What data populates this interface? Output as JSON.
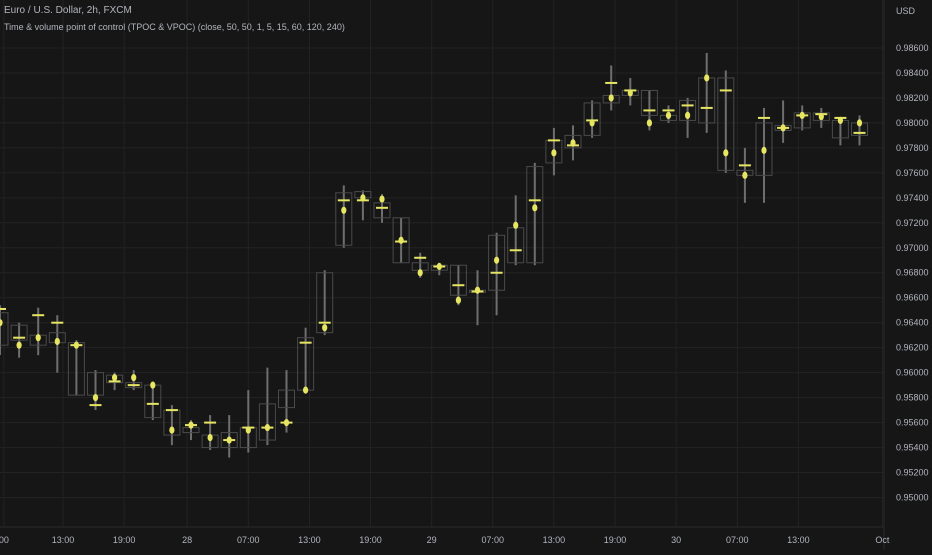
{
  "header": {
    "symbol": "Euro / U.S. Dollar, 2h, FXCM",
    "indicator": "Time & volume point of control (TPOC & VPOC) (close, 50, 50, 1, 5, 15, 60, 120, 240)"
  },
  "colors": {
    "background": "#161616",
    "grid": "#232323",
    "wick": "#6e6e6e",
    "box": "#4a4a4a",
    "marker": "#e7e663",
    "text": "#b2b5be"
  },
  "chart_data": {
    "type": "candlestick",
    "currency_label": "USD",
    "y_ticks": [
      "0.98600",
      "0.98400",
      "0.98200",
      "0.98000",
      "0.97800",
      "0.97600",
      "0.97400",
      "0.97200",
      "0.97000",
      "0.96800",
      "0.96600",
      "0.96400",
      "0.96200",
      "0.96000",
      "0.95800",
      "0.95600",
      "0.95400",
      "0.95200",
      "0.95000"
    ],
    "ylim": [
      0.949,
      0.9876
    ],
    "x_ticks": [
      {
        "label": "00",
        "idx": 0.2
      },
      {
        "label": "13:00",
        "idx": 3.3
      },
      {
        "label": "19:00",
        "idx": 6.5
      },
      {
        "label": "28",
        "idx": 9.8
      },
      {
        "label": "07:00",
        "idx": 13.0
      },
      {
        "label": "13:00",
        "idx": 16.2
      },
      {
        "label": "19:00",
        "idx": 19.4
      },
      {
        "label": "29",
        "idx": 22.6
      },
      {
        "label": "07:00",
        "idx": 25.8
      },
      {
        "label": "13:00",
        "idx": 29.0
      },
      {
        "label": "19:00",
        "idx": 32.2
      },
      {
        "label": "30",
        "idx": 35.4
      },
      {
        "label": "07:00",
        "idx": 38.6
      },
      {
        "label": "13:00",
        "idx": 41.8
      },
      {
        "label": "Oct",
        "idx": 46.2
      }
    ],
    "candles": [
      {
        "o": 0.9648,
        "h": 0.9654,
        "l": 0.9614,
        "c": 0.9622,
        "tpoc": 0.9651,
        "vpoc": 0.964
      },
      {
        "o": 0.9626,
        "h": 0.964,
        "l": 0.9612,
        "c": 0.9638,
        "tpoc": 0.9628,
        "vpoc": 0.9622
      },
      {
        "o": 0.963,
        "h": 0.9652,
        "l": 0.9614,
        "c": 0.9622,
        "tpoc": 0.9646,
        "vpoc": 0.9628
      },
      {
        "o": 0.9624,
        "h": 0.9646,
        "l": 0.96,
        "c": 0.9632,
        "tpoc": 0.964,
        "vpoc": 0.9625
      },
      {
        "o": 0.9624,
        "h": 0.9626,
        "l": 0.9582,
        "c": 0.9582,
        "tpoc": 0.9622,
        "vpoc": 0.9622
      },
      {
        "o": 0.9582,
        "h": 0.9602,
        "l": 0.957,
        "c": 0.96,
        "tpoc": 0.9574,
        "vpoc": 0.958
      },
      {
        "o": 0.9592,
        "h": 0.96,
        "l": 0.9586,
        "c": 0.9598,
        "tpoc": 0.9593,
        "vpoc": 0.9596
      },
      {
        "o": 0.9592,
        "h": 0.9602,
        "l": 0.9586,
        "c": 0.9588,
        "tpoc": 0.959,
        "vpoc": 0.9596
      },
      {
        "o": 0.959,
        "h": 0.959,
        "l": 0.9562,
        "c": 0.9564,
        "tpoc": 0.9575,
        "vpoc": 0.959
      },
      {
        "o": 0.957,
        "h": 0.9574,
        "l": 0.9542,
        "c": 0.955,
        "tpoc": 0.957,
        "vpoc": 0.9554
      },
      {
        "o": 0.9552,
        "h": 0.9562,
        "l": 0.9546,
        "c": 0.9556,
        "tpoc": 0.9558,
        "vpoc": 0.9558
      },
      {
        "o": 0.955,
        "h": 0.9566,
        "l": 0.9538,
        "c": 0.954,
        "tpoc": 0.956,
        "vpoc": 0.9548
      },
      {
        "o": 0.954,
        "h": 0.9566,
        "l": 0.9532,
        "c": 0.9552,
        "tpoc": 0.9546,
        "vpoc": 0.9546
      },
      {
        "o": 0.954,
        "h": 0.9586,
        "l": 0.9536,
        "c": 0.9556,
        "tpoc": 0.9556,
        "vpoc": 0.9554
      },
      {
        "o": 0.9546,
        "h": 0.9604,
        "l": 0.9542,
        "c": 0.9575,
        "tpoc": 0.9556,
        "vpoc": 0.9556
      },
      {
        "o": 0.9572,
        "h": 0.9602,
        "l": 0.9552,
        "c": 0.9586,
        "tpoc": 0.956,
        "vpoc": 0.956
      },
      {
        "o": 0.9586,
        "h": 0.9636,
        "l": 0.9586,
        "c": 0.9628,
        "tpoc": 0.9624,
        "vpoc": 0.9586
      },
      {
        "o": 0.9632,
        "h": 0.9682,
        "l": 0.963,
        "c": 0.968,
        "tpoc": 0.964,
        "vpoc": 0.9636
      },
      {
        "o": 0.9702,
        "h": 0.975,
        "l": 0.97,
        "c": 0.9744,
        "tpoc": 0.9738,
        "vpoc": 0.973
      },
      {
        "o": 0.974,
        "h": 0.9746,
        "l": 0.9722,
        "c": 0.9745,
        "tpoc": 0.9738,
        "vpoc": 0.974
      },
      {
        "o": 0.9736,
        "h": 0.9743,
        "l": 0.972,
        "c": 0.9724,
        "tpoc": 0.9732,
        "vpoc": 0.9739
      },
      {
        "o": 0.9724,
        "h": 0.9724,
        "l": 0.9688,
        "c": 0.9688,
        "tpoc": 0.9705,
        "vpoc": 0.9706
      },
      {
        "o": 0.9688,
        "h": 0.9696,
        "l": 0.9676,
        "c": 0.9682,
        "tpoc": 0.9692,
        "vpoc": 0.968
      },
      {
        "o": 0.9682,
        "h": 0.9688,
        "l": 0.9678,
        "c": 0.9686,
        "tpoc": 0.9685,
        "vpoc": 0.9685
      },
      {
        "o": 0.9686,
        "h": 0.9686,
        "l": 0.9654,
        "c": 0.9662,
        "tpoc": 0.967,
        "vpoc": 0.9658
      },
      {
        "o": 0.9666,
        "h": 0.9682,
        "l": 0.9638,
        "c": 0.9666,
        "tpoc": 0.9665,
        "vpoc": 0.9666
      },
      {
        "o": 0.9666,
        "h": 0.9712,
        "l": 0.9646,
        "c": 0.971,
        "tpoc": 0.968,
        "vpoc": 0.969
      },
      {
        "o": 0.9688,
        "h": 0.9742,
        "l": 0.9686,
        "c": 0.9716,
        "tpoc": 0.9698,
        "vpoc": 0.9718
      },
      {
        "o": 0.9688,
        "h": 0.9768,
        "l": 0.9686,
        "c": 0.9765,
        "tpoc": 0.9738,
        "vpoc": 0.9732
      },
      {
        "o": 0.9768,
        "h": 0.9796,
        "l": 0.9758,
        "c": 0.9786,
        "tpoc": 0.9786,
        "vpoc": 0.9776
      },
      {
        "o": 0.978,
        "h": 0.9798,
        "l": 0.977,
        "c": 0.979,
        "tpoc": 0.9782,
        "vpoc": 0.9784
      },
      {
        "o": 0.979,
        "h": 0.9818,
        "l": 0.9788,
        "c": 0.9816,
        "tpoc": 0.9802,
        "vpoc": 0.98
      },
      {
        "o": 0.9816,
        "h": 0.9846,
        "l": 0.981,
        "c": 0.9822,
        "tpoc": 0.9832,
        "vpoc": 0.982
      },
      {
        "o": 0.9822,
        "h": 0.9836,
        "l": 0.9814,
        "c": 0.9826,
        "tpoc": 0.9826,
        "vpoc": 0.9824
      },
      {
        "o": 0.9826,
        "h": 0.9826,
        "l": 0.9794,
        "c": 0.9806,
        "tpoc": 0.981,
        "vpoc": 0.98
      },
      {
        "o": 0.9806,
        "h": 0.9814,
        "l": 0.98,
        "c": 0.9802,
        "tpoc": 0.981,
        "vpoc": 0.9806
      },
      {
        "o": 0.9802,
        "h": 0.982,
        "l": 0.9788,
        "c": 0.9818,
        "tpoc": 0.9814,
        "vpoc": 0.9806
      },
      {
        "o": 0.98,
        "h": 0.9856,
        "l": 0.9792,
        "c": 0.9836,
        "tpoc": 0.9812,
        "vpoc": 0.9836
      },
      {
        "o": 0.9836,
        "h": 0.9842,
        "l": 0.976,
        "c": 0.9762,
        "tpoc": 0.9826,
        "vpoc": 0.9776
      },
      {
        "o": 0.9758,
        "h": 0.978,
        "l": 0.9736,
        "c": 0.9762,
        "tpoc": 0.9766,
        "vpoc": 0.9758
      },
      {
        "o": 0.9758,
        "h": 0.9812,
        "l": 0.9736,
        "c": 0.98,
        "tpoc": 0.9804,
        "vpoc": 0.9778
      },
      {
        "o": 0.9798,
        "h": 0.9818,
        "l": 0.9784,
        "c": 0.9794,
        "tpoc": 0.9796,
        "vpoc": 0.9796
      },
      {
        "o": 0.9796,
        "h": 0.9814,
        "l": 0.9794,
        "c": 0.9808,
        "tpoc": 0.9806,
        "vpoc": 0.9806
      },
      {
        "o": 0.9808,
        "h": 0.9812,
        "l": 0.9796,
        "c": 0.9802,
        "tpoc": 0.9807,
        "vpoc": 0.9805
      },
      {
        "o": 0.9802,
        "h": 0.9804,
        "l": 0.9782,
        "c": 0.9788,
        "tpoc": 0.9804,
        "vpoc": 0.9802
      },
      {
        "o": 0.979,
        "h": 0.9806,
        "l": 0.9782,
        "c": 0.98,
        "tpoc": 0.9792,
        "vpoc": 0.98
      }
    ]
  }
}
